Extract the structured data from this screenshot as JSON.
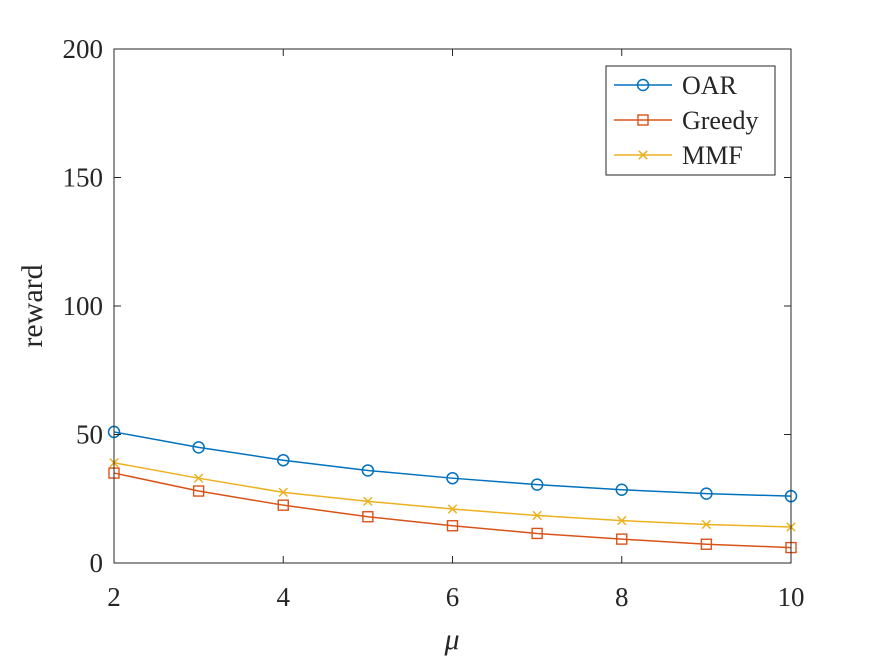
{
  "chart_data": {
    "type": "line",
    "xlabel": "μ",
    "ylabel": "reward",
    "xlim": [
      2,
      10
    ],
    "ylim": [
      0,
      200
    ],
    "xticks": [
      "2",
      "4",
      "6",
      "8",
      "10"
    ],
    "yticks": [
      "0",
      "50",
      "100",
      "150",
      "200"
    ],
    "grid": false,
    "legend_position": "top-right",
    "x": [
      2,
      3,
      4,
      5,
      6,
      7,
      8,
      9,
      10
    ],
    "series": [
      {
        "name": "OAR",
        "color": "#0072BD",
        "marker": "circle",
        "values": [
          51,
          45,
          40,
          36,
          33,
          30.5,
          28.5,
          27,
          26
        ]
      },
      {
        "name": "Greedy",
        "color": "#D95319",
        "marker": "square",
        "values": [
          35,
          28,
          22.5,
          18,
          14.5,
          11.5,
          9.3,
          7.3,
          6
        ]
      },
      {
        "name": "MMF",
        "color": "#EDB120",
        "marker": "x",
        "values": [
          39,
          33,
          27.5,
          24,
          21,
          18.5,
          16.5,
          15,
          14
        ]
      }
    ]
  }
}
